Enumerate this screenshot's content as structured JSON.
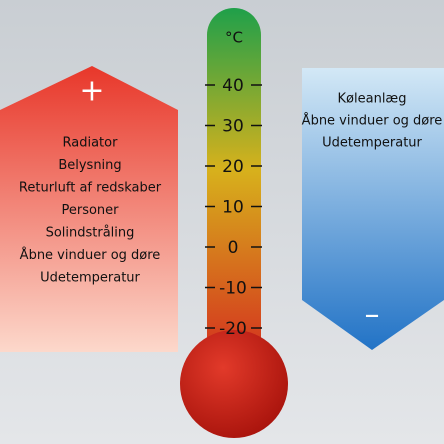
{
  "thermometer": {
    "unit": "°C",
    "scale": [
      "40",
      "30",
      "20",
      "10",
      "0",
      "-10",
      "-20"
    ]
  },
  "heat_sources": {
    "sign": "+",
    "items": [
      "Radiator",
      "Belysning",
      "Returluft af redskaber",
      "Personer",
      "Solindstråling",
      "Åbne vinduer og døre",
      "Udetemperatur"
    ]
  },
  "cooling": {
    "sign": "–",
    "items": [
      "Køleanlæg",
      "Åbne vinduer og døre",
      "Udetemperatur"
    ]
  }
}
